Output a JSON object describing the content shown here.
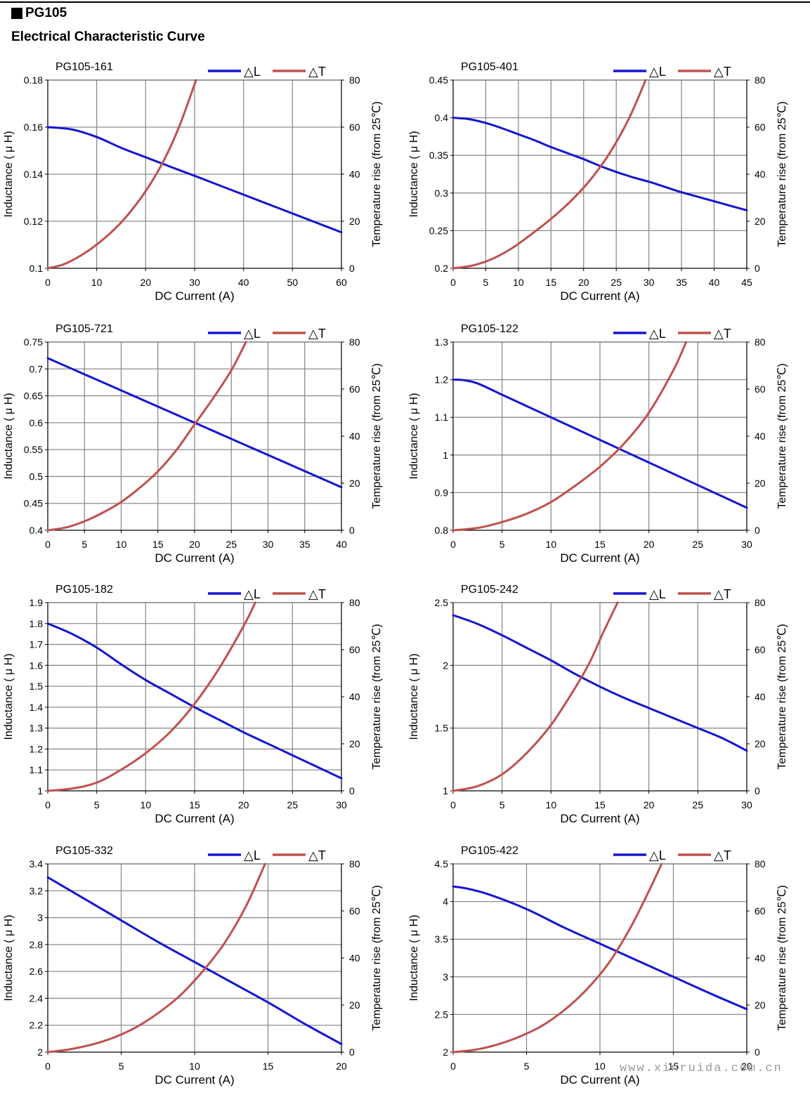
{
  "header": {
    "series_name": "PG105",
    "section_title": "Electrical Characteristic Curve"
  },
  "watermark": "www.xinruida.com.cn",
  "colors": {
    "inductance": "#1414d2",
    "temperature": "#c0504d",
    "grid": "#8c8c8c"
  },
  "chart_data": [
    {
      "type": "line",
      "title": "PG105-161",
      "xlabel": "DC Current (A)",
      "ylabel": "Inductance ( μ H)",
      "y2label": "Temperature rise (from 25℃)",
      "legend": [
        "△L",
        "△T"
      ],
      "xlim": [
        0,
        60
      ],
      "xticks": [
        "0",
        "10",
        "20",
        "30",
        "40",
        "50",
        "60"
      ],
      "ylim": [
        0.1,
        0.18
      ],
      "yticks": [
        "0.1",
        "0.12",
        "0.14",
        "0.16",
        "0.18"
      ],
      "y2lim": [
        0,
        80
      ],
      "y2ticks": [
        "0",
        "20",
        "40",
        "60",
        "80"
      ],
      "series": [
        {
          "name": "△L",
          "axis": "left",
          "x": [
            0,
            5,
            10,
            15,
            20,
            25,
            30,
            35,
            40,
            45,
            50,
            55,
            60
          ],
          "values": [
            0.16,
            0.159,
            0.1558,
            0.1512,
            0.1472,
            0.1432,
            0.1393,
            0.1353,
            0.1313,
            0.1273,
            0.1233,
            0.1193,
            0.1153
          ]
        },
        {
          "name": "△T",
          "axis": "right",
          "x": [
            0,
            3,
            6,
            9,
            12,
            15,
            18,
            21,
            24,
            27,
            30.3
          ],
          "values": [
            0,
            1.5,
            4.5,
            8.5,
            13.5,
            19.5,
            27,
            36,
            47,
            61,
            80
          ]
        }
      ]
    },
    {
      "type": "line",
      "title": "PG105-401",
      "xlabel": "DC Current (A)",
      "ylabel": "Inductance ( μ H)",
      "y2label": "Temperature rise (from 25℃)",
      "legend": [
        "△L",
        "△T"
      ],
      "xlim": [
        0,
        45
      ],
      "xticks": [
        "0",
        "5",
        "10",
        "15",
        "20",
        "25",
        "30",
        "35",
        "40",
        "45"
      ],
      "ylim": [
        0.2,
        0.45
      ],
      "yticks": [
        "0.2",
        "0.25",
        "0.3",
        "0.35",
        "0.4",
        "0.45"
      ],
      "y2lim": [
        0,
        80
      ],
      "y2ticks": [
        "0",
        "20",
        "40",
        "60",
        "80"
      ],
      "series": [
        {
          "name": "△L",
          "axis": "left",
          "x": [
            0,
            2.5,
            5,
            7.5,
            10,
            12.5,
            15,
            17.5,
            20,
            22.5,
            25,
            27.5,
            30,
            32.5,
            35,
            37.5,
            40,
            42.5,
            45
          ],
          "values": [
            0.4,
            0.398,
            0.393,
            0.386,
            0.378,
            0.37,
            0.361,
            0.353,
            0.345,
            0.336,
            0.328,
            0.321,
            0.315,
            0.308,
            0.301,
            0.295,
            0.289,
            0.283,
            0.277
          ]
        },
        {
          "name": "△T",
          "axis": "right",
          "x": [
            0,
            3,
            6,
            9,
            12,
            15,
            18,
            21,
            24,
            27,
            29.5
          ],
          "values": [
            0,
            1.2,
            4,
            8.5,
            14.5,
            21,
            28.5,
            37.5,
            49,
            64,
            80
          ]
        }
      ]
    },
    {
      "type": "line",
      "title": "PG105-721",
      "xlabel": "DC Current (A)",
      "ylabel": "Inductance ( μ H)",
      "y2label": "Temperature rise (from 25℃)",
      "legend": [
        "△L",
        "△T"
      ],
      "xlim": [
        0,
        40
      ],
      "xticks": [
        "0",
        "5",
        "10",
        "15",
        "20",
        "25",
        "30",
        "35",
        "40"
      ],
      "ylim": [
        0.4,
        0.75
      ],
      "yticks": [
        "0.4",
        "0.45",
        "0.5",
        "0.55",
        "0.6",
        "0.65",
        "0.7",
        "0.75"
      ],
      "y2lim": [
        0,
        80
      ],
      "y2ticks": [
        "0",
        "20",
        "40",
        "60",
        "80"
      ],
      "series": [
        {
          "name": "△L",
          "axis": "left",
          "x": [
            0,
            5,
            10,
            15,
            20,
            25,
            30,
            35,
            40
          ],
          "values": [
            0.72,
            0.69,
            0.66,
            0.63,
            0.6,
            0.57,
            0.54,
            0.51,
            0.48
          ]
        },
        {
          "name": "△T",
          "axis": "right",
          "x": [
            0,
            2.5,
            5,
            7.5,
            10,
            12.5,
            15,
            17.5,
            20,
            22.5,
            25,
            27
          ],
          "values": [
            0,
            1.2,
            3.8,
            7.5,
            12,
            18,
            25,
            34,
            45,
            56,
            68,
            80
          ]
        }
      ]
    },
    {
      "type": "line",
      "title": "PG105-122",
      "xlabel": "DC Current (A)",
      "ylabel": "Inductance ( μ H)",
      "y2label": "Temperature rise (from 25℃)",
      "legend": [
        "△L",
        "△T"
      ],
      "xlim": [
        0,
        30
      ],
      "xticks": [
        "0",
        "5",
        "10",
        "15",
        "20",
        "25",
        "30"
      ],
      "ylim": [
        0.8,
        1.3
      ],
      "yticks": [
        "0.8",
        "0.9",
        "1",
        "1.1",
        "1.2",
        "1.3"
      ],
      "y2lim": [
        0,
        80
      ],
      "y2ticks": [
        "0",
        "20",
        "40",
        "60",
        "80"
      ],
      "series": [
        {
          "name": "△L",
          "axis": "left",
          "x": [
            0,
            1,
            2.5,
            5,
            7.5,
            10,
            12.5,
            15,
            17.5,
            20,
            22.5,
            25,
            27.5,
            30
          ],
          "values": [
            1.2,
            1.199,
            1.19,
            1.16,
            1.13,
            1.1,
            1.07,
            1.04,
            1.01,
            0.98,
            0.95,
            0.92,
            0.89,
            0.86
          ]
        },
        {
          "name": "△T",
          "axis": "right",
          "x": [
            0,
            2.5,
            5,
            7.5,
            10,
            12.5,
            15,
            17.5,
            20,
            22.5,
            23.8
          ],
          "values": [
            0,
            1,
            3.5,
            7,
            12,
            19,
            27,
            37,
            50,
            68,
            80
          ]
        }
      ]
    },
    {
      "type": "line",
      "title": "PG105-182",
      "xlabel": "DC Current (A)",
      "ylabel": "Inductance ( μ H)",
      "y2label": "Temperature rise (from 25℃)",
      "legend": [
        "△L",
        "△T"
      ],
      "xlim": [
        0,
        30
      ],
      "xticks": [
        "0",
        "5",
        "10",
        "15",
        "20",
        "25",
        "30"
      ],
      "ylim": [
        1,
        1.9
      ],
      "yticks": [
        "1",
        "1.1",
        "1.2",
        "1.3",
        "1.4",
        "1.5",
        "1.6",
        "1.7",
        "1.8",
        "1.9"
      ],
      "y2lim": [
        0,
        80
      ],
      "y2ticks": [
        "0",
        "20",
        "40",
        "60",
        "80"
      ],
      "series": [
        {
          "name": "△L",
          "axis": "left",
          "x": [
            0,
            2.5,
            5,
            7.5,
            10,
            12.5,
            15,
            17.5,
            20,
            22.5,
            25,
            27.5,
            30
          ],
          "values": [
            1.8,
            1.75,
            1.685,
            1.605,
            1.53,
            1.465,
            1.4,
            1.34,
            1.28,
            1.225,
            1.17,
            1.115,
            1.06
          ]
        },
        {
          "name": "△T",
          "axis": "right",
          "x": [
            0,
            2.5,
            5,
            7.5,
            10,
            12.5,
            15,
            17.5,
            20,
            21.2
          ],
          "values": [
            0,
            1,
            3.5,
            9,
            16,
            25,
            37,
            52,
            70,
            80
          ]
        }
      ]
    },
    {
      "type": "line",
      "title": "PG105-242",
      "xlabel": "DC Current (A)",
      "ylabel": "Inductance ( μ H)",
      "y2label": "Temperature rise (from 25℃)",
      "legend": [
        "△L",
        "△T"
      ],
      "xlim": [
        0,
        30
      ],
      "xticks": [
        "0",
        "5",
        "10",
        "15",
        "20",
        "25",
        "30"
      ],
      "ylim": [
        1,
        2.5
      ],
      "yticks": [
        "1",
        "1.5",
        "2",
        "2.5"
      ],
      "y2lim": [
        0,
        80
      ],
      "y2ticks": [
        "0",
        "20",
        "40",
        "60",
        "80"
      ],
      "series": [
        {
          "name": "△L",
          "axis": "left",
          "x": [
            0,
            2.5,
            5,
            7.5,
            10,
            12.5,
            15,
            17.5,
            20,
            22.5,
            25,
            27.5,
            30
          ],
          "values": [
            2.4,
            2.33,
            2.24,
            2.14,
            2.04,
            1.93,
            1.83,
            1.74,
            1.66,
            1.58,
            1.5,
            1.42,
            1.32
          ]
        },
        {
          "name": "△T",
          "axis": "right",
          "x": [
            0,
            2.5,
            5,
            7.5,
            10,
            12.5,
            14,
            15.3,
            16.8
          ],
          "values": [
            0,
            2,
            7,
            16,
            28,
            44,
            55,
            67,
            80
          ]
        }
      ]
    },
    {
      "type": "line",
      "title": "PG105-332",
      "xlabel": "DC Current (A)",
      "ylabel": "Inductance ( μ H)",
      "y2label": "Temperature rise (from 25℃)",
      "legend": [
        "△L",
        "△T"
      ],
      "xlim": [
        0,
        20
      ],
      "xticks": [
        "0",
        "5",
        "10",
        "15",
        "20"
      ],
      "ylim": [
        2,
        3.4
      ],
      "yticks": [
        "2",
        "2.2",
        "2.4",
        "2.6",
        "2.8",
        "3",
        "3.2",
        "3.4"
      ],
      "y2lim": [
        0,
        80
      ],
      "y2ticks": [
        "0",
        "20",
        "40",
        "60",
        "80"
      ],
      "series": [
        {
          "name": "△L",
          "axis": "left",
          "x": [
            0,
            2.5,
            5,
            7.5,
            10,
            12.5,
            15,
            17.5,
            20
          ],
          "values": [
            3.3,
            3.14,
            2.98,
            2.82,
            2.67,
            2.52,
            2.37,
            2.21,
            2.06
          ]
        },
        {
          "name": "△T",
          "axis": "right",
          "x": [
            0,
            1.5,
            3,
            4.5,
            6,
            7.5,
            9,
            10.5,
            12,
            13.5,
            14.8
          ],
          "values": [
            0,
            1.2,
            3.2,
            6.2,
            10.5,
            16.5,
            24,
            34,
            46,
            62,
            80
          ]
        }
      ]
    },
    {
      "type": "line",
      "title": "PG105-422",
      "xlabel": "DC Current (A)",
      "ylabel": "Inductance ( μ H)",
      "y2label": "Temperature rise (from 25℃)",
      "legend": [
        "△L",
        "△T"
      ],
      "xlim": [
        0,
        20
      ],
      "xticks": [
        "0",
        "5",
        "10",
        "15",
        "20"
      ],
      "ylim": [
        2,
        4.5
      ],
      "yticks": [
        "2",
        "2.5",
        "3",
        "3.5",
        "4",
        "4.5"
      ],
      "y2lim": [
        0,
        80
      ],
      "y2ticks": [
        "0",
        "20",
        "40",
        "60",
        "80"
      ],
      "series": [
        {
          "name": "△L",
          "axis": "left",
          "x": [
            0,
            1,
            2.5,
            5,
            7.5,
            10,
            12.5,
            15,
            17.5,
            20
          ],
          "values": [
            4.2,
            4.17,
            4.09,
            3.9,
            3.66,
            3.44,
            3.22,
            3.0,
            2.78,
            2.57
          ]
        },
        {
          "name": "△T",
          "axis": "right",
          "x": [
            0,
            1.5,
            3,
            4.5,
            6,
            7.5,
            9,
            10.5,
            12,
            13.3,
            14.2
          ],
          "values": [
            0,
            1,
            3.2,
            6.5,
            11,
            17.5,
            26,
            37,
            52,
            68,
            80
          ]
        }
      ]
    }
  ]
}
